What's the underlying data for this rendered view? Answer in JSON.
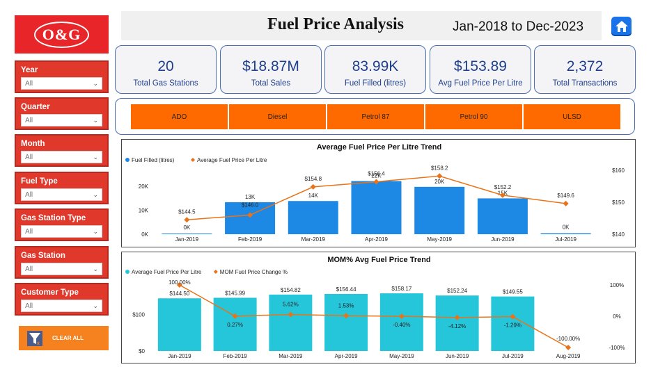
{
  "logo": {
    "text": "O&G"
  },
  "slicers": [
    {
      "label": "Year",
      "value": "All"
    },
    {
      "label": "Quarter",
      "value": "All"
    },
    {
      "label": "Month",
      "value": "All"
    },
    {
      "label": "Fuel Type",
      "value": "All"
    },
    {
      "label": "Gas Station Type",
      "value": "All"
    },
    {
      "label": "Gas Station",
      "value": "All"
    },
    {
      "label": "Customer Type",
      "value": "All"
    }
  ],
  "clear_all": "CLEAR ALL",
  "header": {
    "title": "Fuel Price Analysis",
    "date_range": "Jan-2018 to Dec-2023"
  },
  "kpis": [
    {
      "value": "20",
      "label": "Total Gas Stations"
    },
    {
      "value": "$18.87M",
      "label": "Total Sales"
    },
    {
      "value": "83.99K",
      "label": "Fuel Filled (litres)"
    },
    {
      "value": "$153.89",
      "label": "Avg Fuel Price Per Litre"
    },
    {
      "value": "2,372",
      "label": "Total Transactions"
    }
  ],
  "fuel_types": [
    "ADO",
    "Diesel",
    "Petrol 87",
    "Petrol 90",
    "ULSD"
  ],
  "colors": {
    "accent": "#e0392c",
    "bar_blue": "#1e88e5",
    "bar_cyan": "#26c6da",
    "line": "#e8731a",
    "kpi_text": "#1f3f8f"
  },
  "chart_data": [
    {
      "type": "bar",
      "title": "Average Fuel Price Per Litre Trend",
      "categories": [
        "Jan-2019",
        "Feb-2019",
        "Mar-2019",
        "Apr-2019",
        "May-2019",
        "Jun-2019",
        "Jul-2019"
      ],
      "series": [
        {
          "name": "Fuel Filled (litres)",
          "type": "bar",
          "axis": "left",
          "values": [
            0.3,
            13.3,
            13.8,
            22.1,
            19.7,
            14.9,
            0.4
          ],
          "labels": [
            "0K",
            "13K",
            "14K",
            "22K",
            "20K",
            "15K",
            "0K"
          ]
        },
        {
          "name": "Average Fuel Price Per Litre",
          "type": "line",
          "axis": "right",
          "values": [
            144.5,
            146.0,
            154.8,
            156.4,
            158.2,
            152.2,
            149.6
          ],
          "labels": [
            "$144.5",
            "$146.0",
            "$154.8",
            "$156.4",
            "$158.2",
            "$152.2",
            "$149.6"
          ]
        }
      ],
      "y_left": {
        "ticks": [
          "0K",
          "10K",
          "20K"
        ],
        "ylim": [
          0,
          26
        ]
      },
      "y_right": {
        "ticks": [
          "$140",
          "$150",
          "$160"
        ],
        "ylim": [
          140,
          160
        ]
      }
    },
    {
      "type": "bar",
      "title": "MOM% Avg Fuel Price Trend",
      "categories": [
        "Jan-2019",
        "Feb-2019",
        "Mar-2019",
        "Apr-2019",
        "May-2019",
        "Jun-2019",
        "Jul-2019",
        "Aug-2019"
      ],
      "series": [
        {
          "name": "Average Fuel Price Per Litre",
          "type": "bar",
          "axis": "left",
          "values": [
            144.5,
            145.99,
            154.82,
            156.44,
            158.17,
            152.24,
            149.55,
            null
          ],
          "labels": [
            "$144.50",
            "$145.99",
            "$154.82",
            "$156.44",
            "$158.17",
            "$152.24",
            "$149.55",
            ""
          ]
        },
        {
          "name": "MOM Fuel Price Change %",
          "type": "line",
          "axis": "right",
          "values": [
            100.0,
            0.27,
            5.62,
            1.53,
            -0.4,
            -4.12,
            -1.29,
            -100.0
          ],
          "labels": [
            "100.00%",
            "0.27%",
            "5.62%",
            "1.53%",
            "-0.40%",
            "-4.12%",
            "-1.29%",
            "-100.00%"
          ]
        }
      ],
      "y_left": {
        "ticks": [
          "$0",
          "$100"
        ],
        "ylim": [
          0,
          185
        ]
      },
      "y_right": {
        "ticks": [
          "-100%",
          "0%",
          "100%"
        ],
        "ylim": [
          -100,
          100
        ]
      }
    }
  ]
}
